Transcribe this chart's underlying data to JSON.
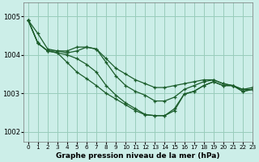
{
  "title": "Graphe pression niveau de la mer (hPa)",
  "bg_color": "#cceee8",
  "grid_color": "#99ccbb",
  "line_color": "#1a5c2a",
  "xlim": [
    -0.5,
    23
  ],
  "ylim": [
    1001.75,
    1005.35
  ],
  "yticks": [
    1002,
    1003,
    1004,
    1005
  ],
  "xticks": [
    0,
    1,
    2,
    3,
    4,
    5,
    6,
    7,
    8,
    9,
    10,
    11,
    12,
    13,
    14,
    15,
    16,
    17,
    18,
    19,
    20,
    21,
    22,
    23
  ],
  "series": [
    [
      1004.9,
      1004.55,
      1004.15,
      1004.1,
      1004.05,
      1004.1,
      1004.2,
      1004.15,
      1003.9,
      1003.65,
      1003.5,
      1003.35,
      1003.25,
      1003.15,
      1003.15,
      1003.2,
      1003.25,
      1003.3,
      1003.35,
      1003.35,
      1003.25,
      1003.2,
      1003.1,
      1003.15
    ],
    [
      1004.9,
      1004.3,
      1004.1,
      1004.1,
      1004.1,
      1004.2,
      1004.2,
      1004.15,
      1003.8,
      1003.45,
      1003.2,
      1003.05,
      1002.95,
      1002.8,
      1002.8,
      1002.9,
      1003.1,
      1003.2,
      1003.3,
      1003.35,
      1003.25,
      1003.2,
      1003.1,
      1003.1
    ],
    [
      1004.9,
      1004.3,
      1004.1,
      1004.05,
      1004.0,
      1003.9,
      1003.75,
      1003.55,
      1003.2,
      1002.95,
      1002.75,
      1002.6,
      1002.45,
      1002.42,
      1002.42,
      1002.55,
      1002.98,
      1003.05,
      1003.2,
      1003.3,
      1003.2,
      1003.2,
      1003.05,
      1003.1
    ],
    [
      1004.9,
      1004.3,
      1004.1,
      1004.05,
      1003.8,
      1003.55,
      1003.38,
      1003.2,
      1003.0,
      1002.85,
      1002.7,
      1002.55,
      1002.44,
      1002.42,
      1002.42,
      1002.6,
      1002.98,
      1003.05,
      1003.2,
      1003.3,
      1003.2,
      1003.2,
      1003.05,
      1003.1
    ]
  ],
  "marker": "+",
  "markersize": 3,
  "linewidth": 0.9,
  "xlabel_fontsize": 6.5,
  "ytick_fontsize": 6,
  "xtick_fontsize": 5.2
}
